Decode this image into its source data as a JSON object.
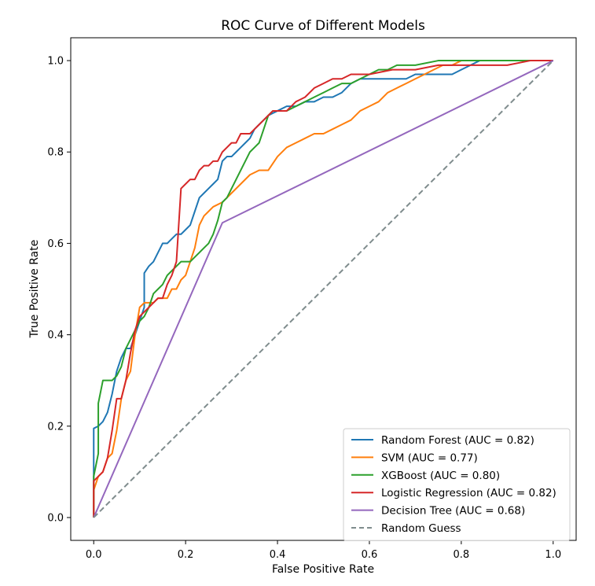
{
  "chart_data": {
    "type": "line",
    "title": "ROC Curve of Different Models",
    "xlabel": "False Positive Rate",
    "ylabel": "True Positive Rate",
    "xlim": [
      -0.05,
      1.05
    ],
    "ylim": [
      -0.05,
      1.05
    ],
    "xticks": [
      "0.0",
      "0.2",
      "0.4",
      "0.6",
      "0.8",
      "1.0"
    ],
    "yticks": [
      "0.0",
      "0.2",
      "0.4",
      "0.6",
      "0.8",
      "1.0"
    ],
    "grid": false,
    "legend_position": "lower right",
    "series": [
      {
        "name": "Random Forest (AUC = 0.82)",
        "color": "#1f77b4",
        "style": "solid",
        "x": [
          0,
          0,
          0.01,
          0.02,
          0.03,
          0.04,
          0.05,
          0.06,
          0.07,
          0.08,
          0.09,
          0.1,
          0.11,
          0.11,
          0.12,
          0.13,
          0.14,
          0.15,
          0.16,
          0.17,
          0.18,
          0.19,
          0.2,
          0.21,
          0.22,
          0.23,
          0.24,
          0.25,
          0.26,
          0.27,
          0.28,
          0.29,
          0.3,
          0.31,
          0.32,
          0.33,
          0.34,
          0.35,
          0.36,
          0.37,
          0.38,
          0.4,
          0.42,
          0.44,
          0.46,
          0.48,
          0.5,
          0.52,
          0.54,
          0.56,
          0.58,
          0.6,
          0.62,
          0.64,
          0.66,
          0.68,
          0.7,
          0.72,
          0.74,
          0.76,
          0.78,
          0.8,
          0.82,
          0.84,
          0.86,
          0.88,
          0.9,
          0.92,
          0.94,
          0.96,
          0.98,
          1.0
        ],
        "y": [
          0,
          0.195,
          0.2,
          0.21,
          0.23,
          0.27,
          0.32,
          0.35,
          0.37,
          0.37,
          0.4,
          0.43,
          0.46,
          0.535,
          0.55,
          0.56,
          0.58,
          0.6,
          0.6,
          0.61,
          0.62,
          0.62,
          0.63,
          0.64,
          0.67,
          0.7,
          0.71,
          0.72,
          0.73,
          0.74,
          0.78,
          0.79,
          0.79,
          0.8,
          0.81,
          0.82,
          0.83,
          0.85,
          0.86,
          0.87,
          0.88,
          0.89,
          0.9,
          0.9,
          0.91,
          0.91,
          0.92,
          0.92,
          0.93,
          0.95,
          0.96,
          0.96,
          0.96,
          0.96,
          0.96,
          0.96,
          0.97,
          0.97,
          0.97,
          0.97,
          0.97,
          0.98,
          0.99,
          1.0,
          1.0,
          1.0,
          1.0,
          1.0,
          1.0,
          1.0,
          1.0,
          1.0
        ]
      },
      {
        "name": "SVM (AUC = 0.77)",
        "color": "#ff7f0e",
        "style": "solid",
        "x": [
          0,
          0,
          0.01,
          0.02,
          0.03,
          0.04,
          0.05,
          0.06,
          0.07,
          0.08,
          0.09,
          0.1,
          0.11,
          0.12,
          0.13,
          0.14,
          0.15,
          0.16,
          0.17,
          0.18,
          0.19,
          0.2,
          0.21,
          0.22,
          0.23,
          0.24,
          0.25,
          0.26,
          0.28,
          0.3,
          0.32,
          0.34,
          0.36,
          0.38,
          0.4,
          0.42,
          0.44,
          0.46,
          0.48,
          0.5,
          0.52,
          0.54,
          0.56,
          0.58,
          0.6,
          0.62,
          0.64,
          0.66,
          0.68,
          0.7,
          0.72,
          0.74,
          0.76,
          0.78,
          0.8,
          0.82,
          0.84,
          0.86,
          0.88,
          0.9,
          0.95,
          1.0
        ],
        "y": [
          0,
          0.06,
          0.09,
          0.1,
          0.13,
          0.14,
          0.19,
          0.26,
          0.3,
          0.32,
          0.4,
          0.46,
          0.47,
          0.47,
          0.47,
          0.48,
          0.48,
          0.48,
          0.5,
          0.5,
          0.52,
          0.53,
          0.56,
          0.59,
          0.64,
          0.66,
          0.67,
          0.68,
          0.69,
          0.71,
          0.73,
          0.75,
          0.76,
          0.76,
          0.79,
          0.81,
          0.82,
          0.83,
          0.84,
          0.84,
          0.85,
          0.86,
          0.87,
          0.89,
          0.9,
          0.91,
          0.93,
          0.94,
          0.95,
          0.96,
          0.97,
          0.98,
          0.99,
          0.99,
          1.0,
          1.0,
          1.0,
          1.0,
          1.0,
          1.0,
          1.0,
          1.0
        ]
      },
      {
        "name": "XGBoost (AUC = 0.80)",
        "color": "#2ca02c",
        "style": "solid",
        "x": [
          0,
          0,
          0.01,
          0.01,
          0.02,
          0.03,
          0.04,
          0.05,
          0.06,
          0.07,
          0.08,
          0.09,
          0.1,
          0.11,
          0.12,
          0.13,
          0.14,
          0.15,
          0.16,
          0.17,
          0.18,
          0.19,
          0.2,
          0.21,
          0.22,
          0.23,
          0.24,
          0.25,
          0.26,
          0.27,
          0.28,
          0.29,
          0.3,
          0.31,
          0.32,
          0.33,
          0.34,
          0.35,
          0.36,
          0.37,
          0.38,
          0.39,
          0.4,
          0.42,
          0.44,
          0.46,
          0.48,
          0.5,
          0.52,
          0.54,
          0.56,
          0.58,
          0.6,
          0.62,
          0.64,
          0.66,
          0.68,
          0.7,
          0.75,
          0.8,
          0.85,
          0.9,
          0.95,
          1.0
        ],
        "y": [
          0,
          0.09,
          0.14,
          0.25,
          0.3,
          0.3,
          0.3,
          0.31,
          0.33,
          0.37,
          0.39,
          0.41,
          0.43,
          0.44,
          0.46,
          0.49,
          0.5,
          0.51,
          0.53,
          0.54,
          0.55,
          0.56,
          0.56,
          0.56,
          0.57,
          0.58,
          0.59,
          0.6,
          0.62,
          0.65,
          0.69,
          0.7,
          0.72,
          0.74,
          0.76,
          0.78,
          0.8,
          0.81,
          0.82,
          0.85,
          0.88,
          0.89,
          0.89,
          0.89,
          0.9,
          0.91,
          0.92,
          0.93,
          0.94,
          0.95,
          0.95,
          0.96,
          0.97,
          0.98,
          0.98,
          0.99,
          0.99,
          0.99,
          1.0,
          1.0,
          1.0,
          1.0,
          1.0,
          1.0
        ]
      },
      {
        "name": "Logistic Regression (AUC = 0.82)",
        "color": "#d62728",
        "style": "solid",
        "x": [
          0,
          0,
          0.01,
          0.02,
          0.03,
          0.04,
          0.05,
          0.06,
          0.07,
          0.08,
          0.09,
          0.1,
          0.11,
          0.12,
          0.13,
          0.14,
          0.15,
          0.16,
          0.17,
          0.18,
          0.19,
          0.2,
          0.21,
          0.22,
          0.23,
          0.24,
          0.25,
          0.26,
          0.27,
          0.28,
          0.29,
          0.3,
          0.31,
          0.32,
          0.33,
          0.34,
          0.35,
          0.36,
          0.37,
          0.38,
          0.39,
          0.4,
          0.42,
          0.44,
          0.46,
          0.48,
          0.5,
          0.52,
          0.54,
          0.56,
          0.58,
          0.6,
          0.65,
          0.7,
          0.75,
          0.8,
          0.85,
          0.9,
          0.95,
          1.0
        ],
        "y": [
          0,
          0.08,
          0.09,
          0.1,
          0.13,
          0.19,
          0.26,
          0.26,
          0.3,
          0.36,
          0.41,
          0.44,
          0.45,
          0.46,
          0.47,
          0.48,
          0.48,
          0.51,
          0.53,
          0.56,
          0.72,
          0.73,
          0.74,
          0.74,
          0.76,
          0.77,
          0.77,
          0.78,
          0.78,
          0.8,
          0.81,
          0.82,
          0.82,
          0.84,
          0.84,
          0.84,
          0.85,
          0.86,
          0.87,
          0.88,
          0.89,
          0.89,
          0.89,
          0.91,
          0.92,
          0.94,
          0.95,
          0.96,
          0.96,
          0.97,
          0.97,
          0.97,
          0.98,
          0.98,
          0.99,
          0.99,
          0.99,
          0.99,
          1.0,
          1.0
        ]
      },
      {
        "name": "Decision Tree (AUC = 0.68)",
        "color": "#9467bd",
        "style": "solid",
        "x": [
          0,
          0.28,
          1.0
        ],
        "y": [
          0,
          0.645,
          1.0
        ]
      },
      {
        "name": "Random Guess",
        "color": "#7f8c8d",
        "style": "dashed",
        "x": [
          0,
          1
        ],
        "y": [
          0,
          1
        ]
      }
    ]
  }
}
